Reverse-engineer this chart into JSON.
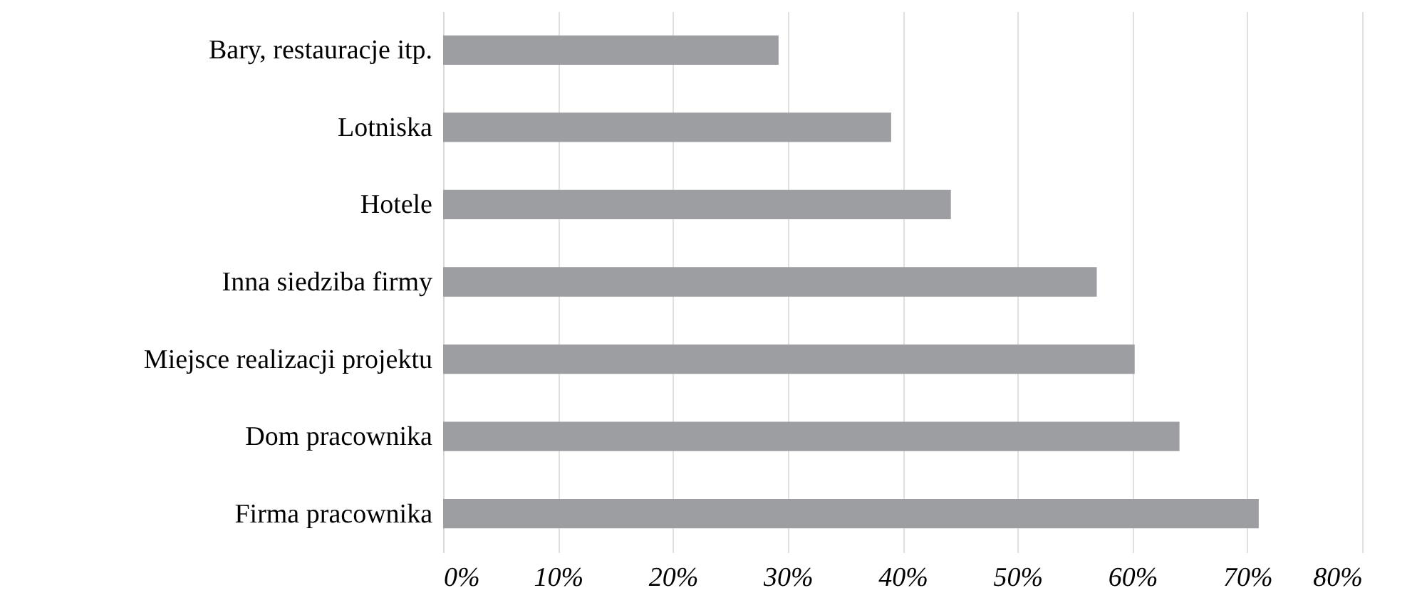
{
  "chart_data": {
    "type": "bar",
    "orientation": "horizontal",
    "categories": [
      "Bary, restauracje itp.",
      "Lotniska",
      "Hotele",
      "Inna siedziba firmy",
      "Miejsce realizacji projektu",
      "Dom pracownika",
      "Firma pracownika"
    ],
    "values": [
      29.2,
      39,
      44.2,
      56.9,
      60.2,
      64.1,
      71
    ],
    "color": "#9d9ea2",
    "xlim": [
      0,
      80
    ],
    "xticks": [
      {
        "value": 0,
        "label": "0%"
      },
      {
        "value": 10,
        "label": "10%"
      },
      {
        "value": 20,
        "label": "20%"
      },
      {
        "value": 30,
        "label": "30%"
      },
      {
        "value": 40,
        "label": "40%"
      },
      {
        "value": 50,
        "label": "50%"
      },
      {
        "value": 60,
        "label": "60%"
      },
      {
        "value": 70,
        "label": "70%"
      },
      {
        "value": 80,
        "label": "80%"
      }
    ],
    "grid": "x"
  }
}
